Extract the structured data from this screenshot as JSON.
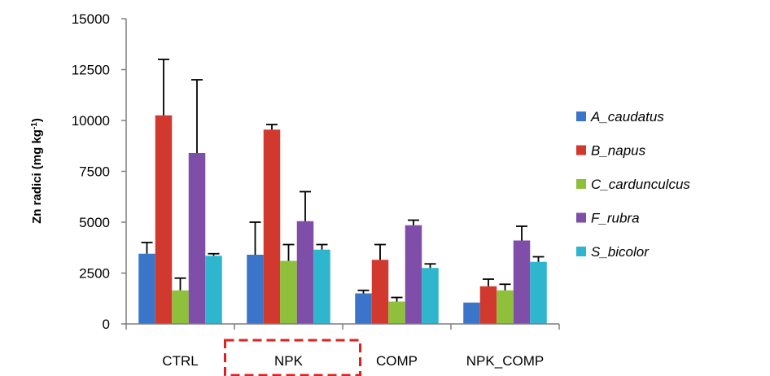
{
  "chart_data": {
    "type": "bar",
    "ylabel": "Zn radici (mg kg",
    "ylabel_sup": "-1",
    "ylabel_close": ")",
    "categories": [
      "CTRL",
      "NPK",
      "COMP",
      "NPK_COMP"
    ],
    "ylim": [
      0,
      15000
    ],
    "yticks": [
      "15000",
      "12500",
      "10000",
      "7500",
      "5000",
      "2500",
      "0"
    ],
    "grid": false,
    "legend_position": "right",
    "highlighted_category": "NPK",
    "highlight_color": "#e02020",
    "series": [
      {
        "name": "A_caudatus",
        "color": "#3b75c9",
        "values": [
          3450,
          3400,
          1500,
          1050
        ],
        "errors": [
          550,
          1600,
          150,
          0
        ]
      },
      {
        "name": "B_napus",
        "color": "#d1392f",
        "values": [
          10250,
          9550,
          3150,
          1850
        ],
        "errors": [
          2750,
          250,
          750,
          350
        ]
      },
      {
        "name": "C_cardunculcus",
        "color": "#8fc03c",
        "values": [
          1650,
          3100,
          1100,
          1650
        ],
        "errors": [
          600,
          800,
          200,
          300
        ]
      },
      {
        "name": "F_rubra",
        "color": "#7f4ea8",
        "values": [
          8400,
          5050,
          4850,
          4100
        ],
        "errors": [
          3600,
          1450,
          250,
          700
        ]
      },
      {
        "name": "S_bicolor",
        "color": "#2fb6cf",
        "values": [
          3350,
          3650,
          2750,
          3050
        ],
        "errors": [
          100,
          250,
          200,
          250
        ]
      }
    ]
  }
}
